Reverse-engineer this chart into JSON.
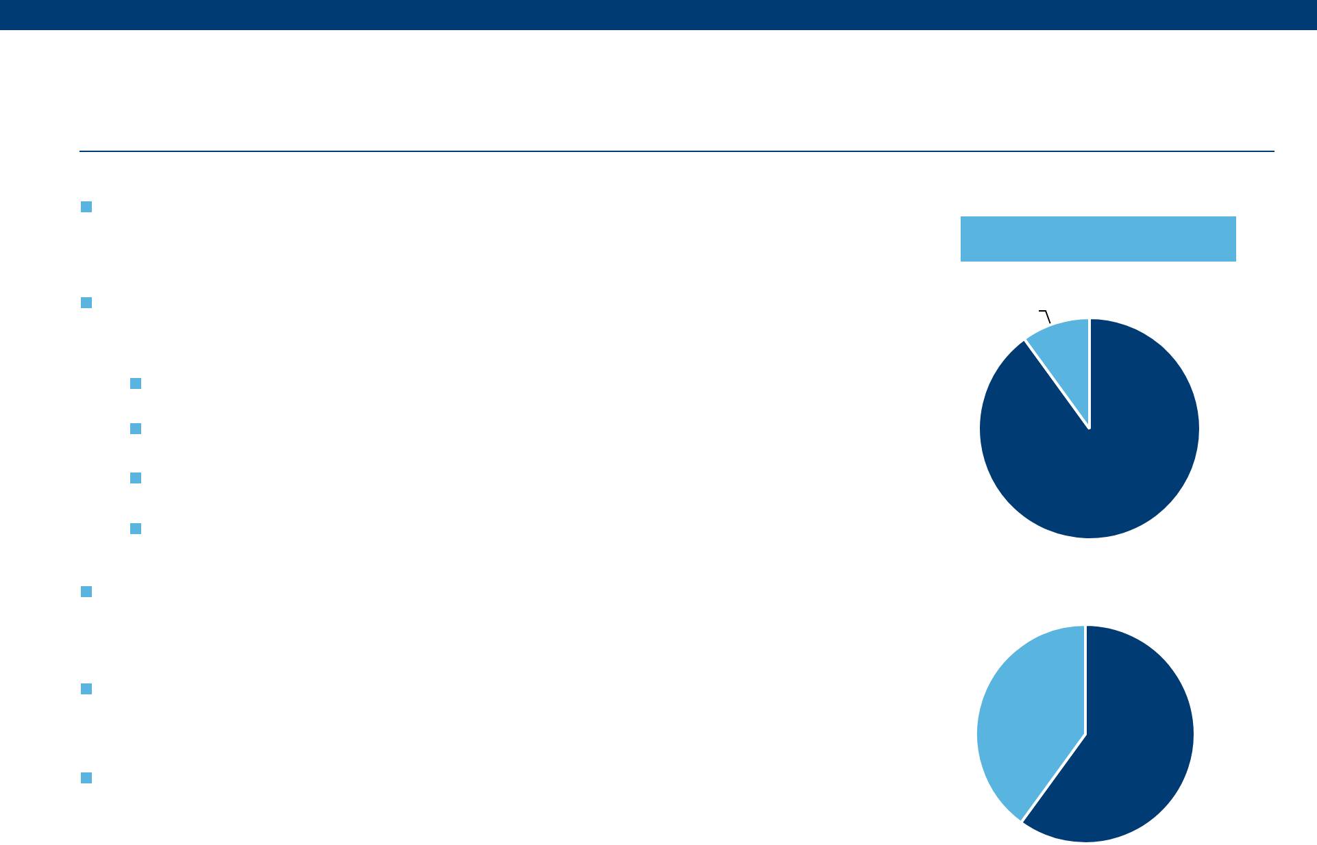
{
  "chart_data": [
    {
      "type": "pie",
      "categories": [
        null,
        null
      ],
      "values": [
        90,
        10
      ],
      "colors": [
        "#003b73",
        "#5ab4e0"
      ]
    },
    {
      "type": "pie",
      "categories": [
        null,
        null
      ],
      "values": [
        60,
        40
      ],
      "colors": [
        "#003b73",
        "#5ab4e0"
      ]
    }
  ]
}
